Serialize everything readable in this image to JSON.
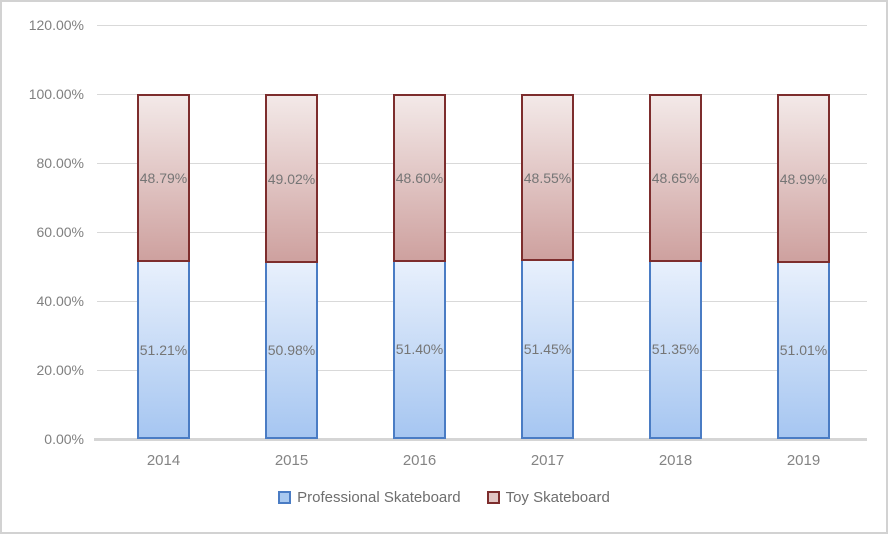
{
  "chart_data": {
    "type": "bar",
    "subtype": "stacked-100",
    "title": "",
    "xlabel": "",
    "ylabel": "",
    "categories": [
      "2014",
      "2015",
      "2016",
      "2017",
      "2018",
      "2019"
    ],
    "series": [
      {
        "name": "Professional Skateboard",
        "values": [
          51.21,
          50.98,
          51.4,
          51.45,
          51.35,
          51.01
        ],
        "data_labels": [
          "51.21%",
          "50.98%",
          "51.40%",
          "51.45%",
          "51.35%",
          "51.01%"
        ],
        "border_color": "#4a7cc4",
        "fill_top": "#e8f0fc",
        "fill_bottom": "#a6c6f1",
        "legend_swatch_fill": "#a9c9f0"
      },
      {
        "name": "Toy Skateboard",
        "values": [
          48.79,
          49.02,
          48.6,
          48.55,
          48.65,
          48.99
        ],
        "data_labels": [
          "48.79%",
          "49.02%",
          "48.60%",
          "48.55%",
          "48.65%",
          "48.99%"
        ],
        "border_color": "#7d2d2d",
        "fill_top": "#f3e9e8",
        "fill_bottom": "#cea19f",
        "legend_swatch_fill": "#e2c6c4"
      }
    ],
    "y_ticks": [
      "0.00%",
      "20.00%",
      "40.00%",
      "60.00%",
      "80.00%",
      "100.00%",
      "120.00%"
    ],
    "ylim": [
      0,
      120
    ],
    "grid": "horizontal",
    "legend_position": "bottom",
    "colors": {
      "gridline": "#d9d9d9",
      "axis_line": "#d5d5d5",
      "tick_text": "#808080",
      "data_label_text": "#757575",
      "legend_text": "#6e6e6e",
      "chart_border": "#d2d2d2"
    }
  }
}
